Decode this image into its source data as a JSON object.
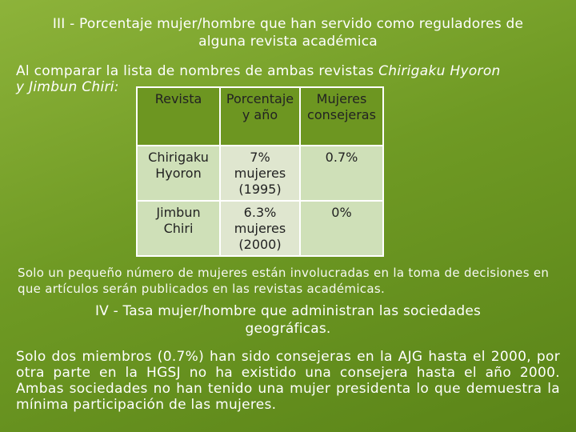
{
  "slide": {
    "heading_iii": "III - Porcentaje mujer/hombre que han servido como reguladores de alguna revista académica",
    "intro": {
      "prefix": "Al comparar la lista de nombres de ambas revistas ",
      "journal_a": "Chirigaku Hyoron",
      "joiner": "y ",
      "journal_b": "Jimbun Chiri:"
    },
    "table": {
      "headers": [
        "Revista",
        "Porcentaje y año",
        "Mujeres consejeras"
      ],
      "rows": [
        [
          "Chirigaku Hyoron",
          "7% mujeres (1995)",
          "0.7%"
        ],
        [
          "Jimbun Chiri",
          "6.3% mujeres (2000)",
          "0%"
        ]
      ]
    },
    "note": "Solo un pequeño número de mujeres están involucradas en la toma de decisiones en que artículos serán publicados en las revistas académicas.",
    "heading_iv": "IV - Tasa mujer/hombre que administran las sociedades geográficas.",
    "closing": "Solo dos miembros (0.7%) han sido consejeras en la AJG hasta el 2000, por otra parte en la HGSJ no ha existido una consejera hasta el año 2000. Ambas sociedades no han tenido una mujer presidenta lo que demuestra la mínima participación de las mujeres."
  }
}
